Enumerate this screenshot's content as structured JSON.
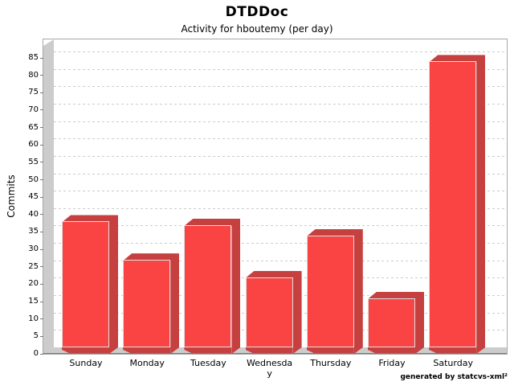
{
  "title": "DTDDoc",
  "subtitle": "Activity for hboutemy (per day)",
  "footer": "generated by statcvs-xml²",
  "colors": {
    "bar_front": "#fa4343",
    "bar_dark": "#c64040",
    "bar_outline": "#dfdfdf",
    "wall_floor": "#cccccc",
    "gridline": "#cccccc",
    "plot_border": "#a8a8a8",
    "axis_line": "#787878",
    "text": "#000000",
    "background": "#ffffff"
  },
  "chart_data": {
    "type": "bar",
    "style": "3d-bar",
    "title": "DTDDoc",
    "subtitle": "Activity for hboutemy (per day)",
    "categories": [
      "Sunday",
      "Monday",
      "Tuesday",
      "Wednesday",
      "Thursday",
      "Friday",
      "Saturday"
    ],
    "values": [
      38,
      27,
      37,
      22,
      34,
      16,
      84
    ],
    "xlabel": "",
    "ylabel": "Commits",
    "ylim": [
      0,
      85
    ],
    "ytick_step": 5,
    "grid": true,
    "legend": "none",
    "bar_color": "#fa4343"
  }
}
